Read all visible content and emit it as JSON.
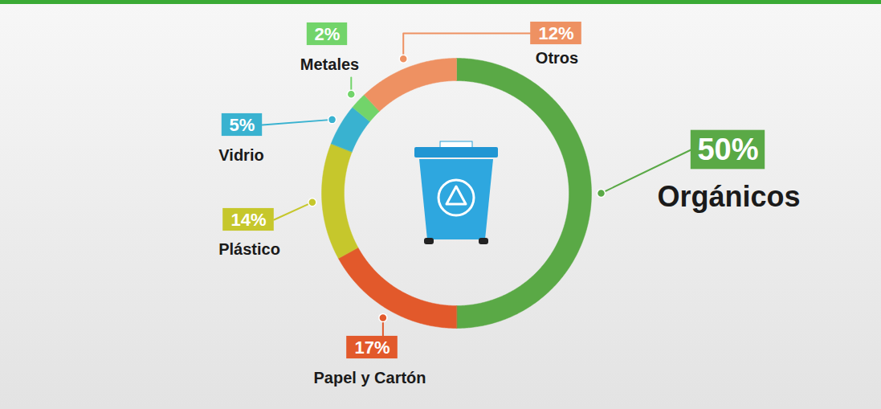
{
  "chart_data": {
    "type": "donut",
    "categories": [
      "Orgánicos",
      "Papel y Cartón",
      "Plástico",
      "Vidrio",
      "Metales",
      "Otros"
    ],
    "values": [
      50,
      17,
      14,
      5,
      2,
      12
    ],
    "value_labels": [
      "50%",
      "17%",
      "14%",
      "5%",
      "2%",
      "12%"
    ],
    "colors": [
      "#5aa946",
      "#e2592b",
      "#c6c72c",
      "#39b2d0",
      "#72d46a",
      "#ee9162"
    ],
    "data_labels": true
  }
}
